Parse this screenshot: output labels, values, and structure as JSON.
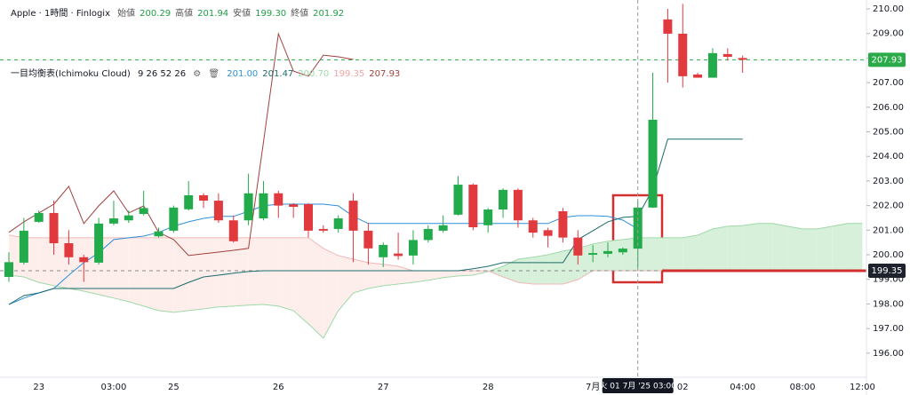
{
  "chart_data": {
    "type": "candlestick",
    "title": "Apple · 1時間 · Finlogix",
    "ohlc_legend": [
      {
        "label": "始値",
        "value": "200.29"
      },
      {
        "label": "高値",
        "value": "201.94"
      },
      {
        "label": "安値",
        "value": "199.30"
      },
      {
        "label": "終値",
        "value": "201.92"
      }
    ],
    "indicator": {
      "name": "一目均衡表(Ichimoku Cloud)",
      "params": "9 26 52 26",
      "values": [
        {
          "text": "201.00",
          "color": "#2f8fd8"
        },
        {
          "text": "201.47",
          "color": "#1d6b6b"
        },
        {
          "text": "200.70",
          "color": "#9fd9a8"
        },
        {
          "text": "199.35",
          "color": "#f2a3a3"
        },
        {
          "text": "207.93",
          "color": "#a0413d"
        }
      ]
    },
    "categories": [
      null,
      null,
      "23",
      null,
      null,
      null,
      null,
      "03:00",
      null,
      null,
      null,
      "25",
      null,
      null,
      null,
      null,
      null,
      null,
      "26",
      null,
      null,
      null,
      null,
      null,
      null,
      "27",
      null,
      null,
      null,
      null,
      null,
      null,
      "28",
      null,
      null,
      null,
      null,
      null,
      null,
      "7月",
      null,
      null,
      null,
      null,
      null,
      "02",
      null,
      null,
      null,
      "04:00",
      null,
      null,
      null,
      "08:00",
      null,
      null,
      null,
      "12:00"
    ],
    "open": [
      199.1,
      199.68,
      201.34,
      201.7,
      200.47,
      199.9,
      199.68,
      201.27,
      201.4,
      201.66,
      200.75,
      200.98,
      201.85,
      202.42,
      202.2,
      201.4,
      201.4,
      201.48,
      202.5,
      202.05,
      202.06,
      201.05,
      201.05,
      202.2,
      200.98,
      199.9,
      200.05,
      199.97,
      200.6,
      200.98,
      201.63,
      202.85,
      201.2,
      201.84,
      202.64,
      201.4,
      201.0,
      201.77,
      200.7,
      200.0,
      200.04,
      200.1,
      200.25,
      201.92,
      209.57,
      208.99,
      207.33,
      207.2,
      208.16,
      208.0,
      null,
      null,
      null,
      null,
      null,
      null,
      null,
      null
    ],
    "high": [
      200.1,
      201.5,
      201.8,
      202.2,
      201.0,
      200.0,
      201.5,
      202.2,
      201.8,
      202.6,
      201.1,
      202.0,
      203.0,
      202.5,
      202.5,
      201.6,
      203.3,
      203.0,
      202.6,
      202.1,
      202.1,
      201.2,
      201.6,
      202.5,
      201.3,
      200.5,
      200.9,
      201.0,
      201.2,
      201.6,
      203.2,
      202.9,
      201.9,
      202.7,
      202.7,
      201.5,
      201.1,
      201.9,
      201.0,
      200.4,
      200.5,
      200.3,
      202.2,
      207.4,
      210.0,
      210.2,
      207.4,
      208.4,
      208.4,
      208.1,
      null,
      null,
      null,
      null,
      null,
      null,
      null,
      null
    ],
    "low": [
      198.9,
      199.6,
      201.3,
      200.0,
      199.6,
      198.9,
      199.6,
      201.2,
      201.3,
      201.6,
      200.7,
      200.9,
      201.8,
      201.9,
      201.3,
      200.5,
      201.2,
      201.4,
      201.5,
      201.5,
      200.7,
      200.9,
      200.9,
      199.7,
      199.6,
      199.5,
      199.8,
      199.6,
      200.5,
      200.9,
      201.6,
      201.0,
      200.9,
      201.5,
      201.1,
      200.7,
      200.3,
      200.5,
      199.6,
      199.7,
      199.9,
      200.0,
      199.5,
      201.9,
      207.0,
      206.8,
      207.2,
      207.2,
      207.9,
      207.4,
      null,
      null,
      null,
      null,
      null,
      null,
      null,
      null
    ],
    "close": [
      199.7,
      200.98,
      201.7,
      200.47,
      199.9,
      199.7,
      201.27,
      201.48,
      201.6,
      201.9,
      200.95,
      201.92,
      202.42,
      202.2,
      201.4,
      200.55,
      202.5,
      202.5,
      202.0,
      201.95,
      200.98,
      200.98,
      201.48,
      200.98,
      200.26,
      200.4,
      199.95,
      200.6,
      201.05,
      201.2,
      202.85,
      201.12,
      201.84,
      202.64,
      201.4,
      200.9,
      200.77,
      200.7,
      199.97,
      200.07,
      200.15,
      200.25,
      201.92,
      205.49,
      208.99,
      207.26,
      207.2,
      208.2,
      208.05,
      207.93,
      null,
      null,
      null,
      null,
      null,
      null,
      null,
      null
    ],
    "up_color": "#22ab4a",
    "down_color": "#e0393e",
    "series": [
      {
        "color": "#2f8fd8",
        "values": [
          197.98,
          198.24,
          198.45,
          198.63,
          199.17,
          199.68,
          200.08,
          200.62,
          200.69,
          200.76,
          200.91,
          201.16,
          201.34,
          201.48,
          201.56,
          201.56,
          201.77,
          201.99,
          202.06,
          202.06,
          202.06,
          202.06,
          201.99,
          201.56,
          201.27,
          201.27,
          201.27,
          201.27,
          201.27,
          201.27,
          201.27,
          201.27,
          201.27,
          201.27,
          201.27,
          201.27,
          201.27,
          201.52,
          201.59,
          201.59,
          201.56,
          201.41,
          201.05,
          null,
          null,
          null,
          null,
          null,
          null,
          null,
          null,
          null,
          null,
          null,
          null,
          null,
          null,
          null
        ]
      },
      {
        "color": "#1d6b6b",
        "values": [
          197.98,
          198.34,
          198.45,
          198.63,
          198.63,
          198.63,
          198.63,
          198.63,
          198.63,
          198.63,
          198.63,
          198.63,
          198.88,
          199.1,
          199.17,
          199.25,
          199.32,
          199.35,
          199.35,
          199.35,
          199.35,
          199.35,
          199.35,
          199.35,
          199.35,
          199.35,
          199.35,
          199.35,
          199.35,
          199.35,
          199.35,
          199.43,
          199.53,
          199.68,
          199.68,
          199.68,
          199.68,
          199.68,
          200.62,
          200.98,
          201.34,
          201.52,
          201.56,
          202.67,
          204.7,
          204.7,
          204.7,
          204.7,
          204.7,
          204.7,
          null,
          null,
          null,
          null,
          null,
          null,
          null,
          null
        ]
      },
      {
        "color": "#a0413d",
        "values": [
          200.91,
          201.34,
          201.7,
          202.06,
          202.78,
          201.27,
          201.99,
          202.6,
          201.7,
          201.99,
          200.91,
          200.62,
          199.97,
          200.04,
          200.11,
          200.18,
          200.26,
          204.59,
          208.99,
          207.47,
          207.26,
          208.12,
          208.05,
          207.94,
          null,
          null,
          null,
          null,
          null,
          null,
          null,
          null,
          null,
          null,
          null,
          null,
          null,
          null,
          null,
          null,
          null,
          null,
          null,
          null,
          null,
          null,
          null,
          null,
          null,
          null,
          null,
          null,
          null,
          null,
          null,
          null,
          null,
          null
        ]
      }
    ],
    "cloud": {
      "up_fill": "#d6f0da",
      "down_fill": "#fdeeec",
      "span_a": {
        "color": "#9fd9a8",
        "values": [
          199.17,
          199.1,
          198.88,
          198.74,
          198.63,
          198.52,
          198.38,
          198.24,
          198.09,
          197.91,
          197.73,
          197.66,
          197.73,
          197.8,
          197.88,
          197.91,
          197.95,
          197.98,
          197.91,
          197.73,
          197.19,
          196.61,
          197.73,
          198.45,
          198.63,
          198.74,
          198.81,
          198.88,
          198.96,
          199.07,
          199.14,
          199.17,
          199.32,
          199.53,
          199.82,
          199.9,
          200.0,
          200.15,
          200.26,
          200.44,
          200.55,
          200.62,
          200.69,
          200.69,
          200.69,
          200.69,
          200.8,
          201.05,
          201.16,
          201.19,
          201.27,
          201.27,
          201.16,
          201.05,
          201.05,
          201.16,
          201.27,
          201.27
        ]
      },
      "span_b": {
        "color": "#f2b8b8",
        "values": [
          200.8,
          200.69,
          200.69,
          200.69,
          200.69,
          200.69,
          200.69,
          200.69,
          200.69,
          200.69,
          200.69,
          200.69,
          200.69,
          200.69,
          200.69,
          200.69,
          200.69,
          200.69,
          200.69,
          200.69,
          200.69,
          200.26,
          199.97,
          199.82,
          199.68,
          199.61,
          199.53,
          199.35,
          199.35,
          199.35,
          199.35,
          199.35,
          199.35,
          199.1,
          198.88,
          198.81,
          198.81,
          198.81,
          198.99,
          199.35,
          199.35,
          199.35,
          199.35,
          199.35,
          199.35,
          199.35,
          199.35,
          199.35,
          199.35,
          199.35,
          199.35,
          199.35,
          199.35,
          199.35,
          199.35,
          199.35,
          199.35,
          199.35
        ]
      }
    },
    "ylim": [
      195.02,
      210.36
    ],
    "yticks": [
      {
        "value": 196,
        "label": "196.00"
      },
      {
        "value": 197,
        "label": "197.00"
      },
      {
        "value": 198,
        "label": "198.00"
      },
      {
        "value": 199,
        "label": "199.00"
      },
      {
        "value": 200,
        "label": "200.00"
      },
      {
        "value": 201,
        "label": "201.00"
      },
      {
        "value": 202,
        "label": "202.00"
      },
      {
        "value": 203,
        "label": "203.00"
      },
      {
        "value": 204,
        "label": "204.00"
      },
      {
        "value": 205,
        "label": "205.00"
      },
      {
        "value": 206,
        "label": "206.00"
      },
      {
        "value": 207,
        "label": "207.00"
      },
      {
        "value": 208,
        "label": "208.00"
      },
      {
        "value": 209,
        "label": "209.00"
      },
      {
        "value": 210,
        "label": "210.00"
      }
    ],
    "last_price": {
      "value": 207.93,
      "color": "#2aaa49"
    },
    "marker_price": 199.35,
    "crosshair": "火 01 7月 '25 03:00"
  }
}
